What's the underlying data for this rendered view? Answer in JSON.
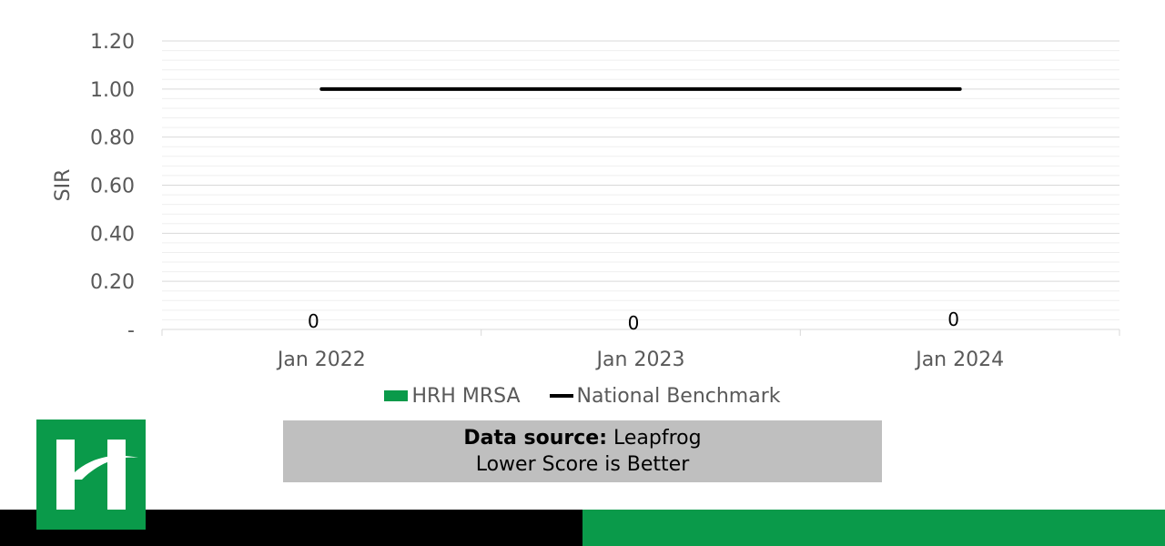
{
  "chart_data": {
    "type": "bar",
    "categories": [
      "Jan 2022",
      "Jan 2023",
      "Jan 2024"
    ],
    "series": [
      {
        "name": "HRH MRSA",
        "kind": "bar",
        "values": [
          0,
          0,
          0
        ],
        "data_labels": [
          "0",
          "0",
          "0"
        ],
        "color": "#0a9a4a"
      },
      {
        "name": "National Benchmark",
        "kind": "line",
        "values": [
          1.0,
          1.0,
          1.0
        ],
        "color": "#000000"
      }
    ],
    "ylabel": "SIR",
    "ylim": [
      0,
      1.2
    ],
    "yticks": [
      0,
      0.2,
      0.4,
      0.6,
      0.8,
      1.0,
      1.2
    ],
    "ytick_labels": [
      "-",
      "0.20",
      "0.40",
      "0.60",
      "0.80",
      "1.00",
      "1.20"
    ],
    "grid": true,
    "legend": "bottom"
  },
  "source": {
    "label": "Data source:",
    "value": "Leapfrog",
    "note": "Lower Score is Better"
  },
  "colors": {
    "brand_green": "#0a9a4a",
    "footer_black": "#000000",
    "source_box": "#bfbfbf"
  },
  "logo": {
    "icon": "hospital-h-logo-icon"
  }
}
